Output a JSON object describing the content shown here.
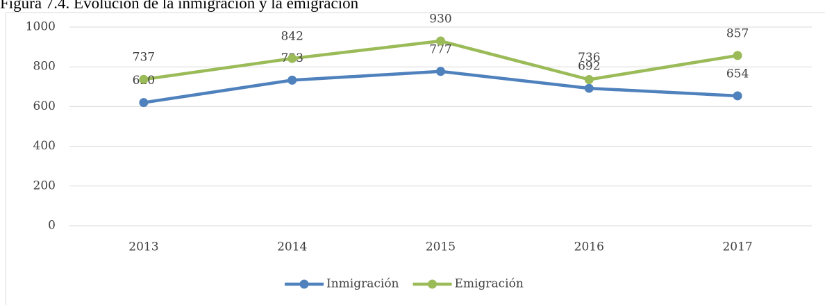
{
  "chart_data": {
    "type": "line",
    "title": "Figura 7.4. Evolución de la inmigración y la emigración",
    "categories": [
      "2013",
      "2014",
      "2015",
      "2016",
      "2017"
    ],
    "series": [
      {
        "name": "Inmigración",
        "color": "#4f81bd",
        "values": [
          620,
          733,
          777,
          692,
          654
        ]
      },
      {
        "name": "Emigración",
        "color": "#9bbb59",
        "values": [
          737,
          842,
          930,
          736,
          857
        ]
      }
    ],
    "ylim": [
      0,
      1000
    ],
    "yticks": [
      0,
      200,
      400,
      600,
      800,
      1000
    ],
    "grid": true,
    "legend": "bottom"
  }
}
